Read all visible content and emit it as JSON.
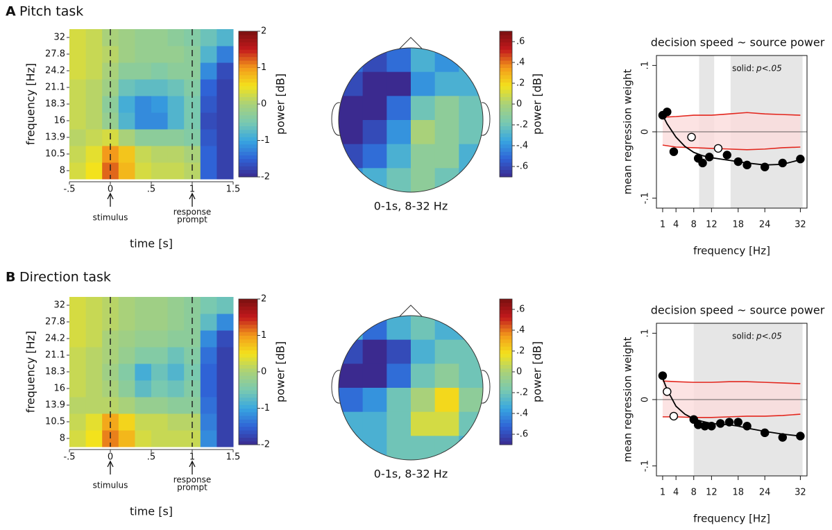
{
  "panels": [
    {
      "label": "A",
      "title": "Pitch task"
    },
    {
      "label": "B",
      "title": "Direction task"
    }
  ],
  "chart_data": [
    {
      "type": "heatmap",
      "xlabel": "time [s]",
      "ylabel": "frequency [Hz]",
      "xlim": [
        -0.5,
        1.5
      ],
      "xticks": [
        {
          "value": -0.5,
          "label": "-.5"
        },
        0,
        {
          "value": 0.5,
          "label": ".5"
        },
        1,
        1.5
      ],
      "frequencies": [
        8,
        10.5,
        13.9,
        16,
        18.3,
        21.1,
        24.2,
        27.8,
        32
      ],
      "x": [
        -0.4,
        -0.2,
        0,
        0.2,
        0.4,
        0.6,
        0.8,
        1.0,
        1.2,
        1.4
      ],
      "values": [
        [
          0.3,
          0.5,
          1.2,
          0.8,
          0.3,
          0.2,
          0.2,
          0.1,
          -1.5,
          -1.8
        ],
        [
          0.2,
          0.4,
          1.0,
          0.7,
          0.2,
          0.1,
          0.1,
          0,
          -1.5,
          -1.8
        ],
        [
          0.1,
          0.2,
          0.3,
          0,
          -0.3,
          -0.3,
          -0.3,
          -0.4,
          -1.6,
          -1.8
        ],
        [
          0.2,
          0.1,
          -0.2,
          -0.8,
          -1.2,
          -1.2,
          -0.8,
          -0.5,
          -1.7,
          -1.8
        ],
        [
          0.2,
          0.1,
          -0.3,
          -0.9,
          -1.2,
          -1.1,
          -0.8,
          -0.5,
          -1.6,
          -1.8
        ],
        [
          0.2,
          0.1,
          -0.1,
          -0.6,
          -0.7,
          -0.7,
          -0.6,
          -0.4,
          -1.5,
          -1.8
        ],
        [
          0.3,
          0.2,
          0,
          -0.3,
          -0.3,
          -0.4,
          -0.3,
          -0.3,
          -1.2,
          -1.7
        ],
        [
          0.3,
          0.2,
          0.1,
          -0.1,
          -0.2,
          -0.2,
          -0.2,
          -0.3,
          -0.8,
          -1.3
        ],
        [
          0.3,
          0.2,
          0,
          -0.1,
          -0.2,
          -0.2,
          -0.3,
          -0.4,
          -0.6,
          -0.8
        ]
      ],
      "vlines": [
        0,
        1
      ],
      "annotations": [
        {
          "x": 0,
          "text": [
            "stimulus"
          ]
        },
        {
          "x": 1,
          "text": [
            "response",
            "prompt"
          ]
        }
      ],
      "colorbar": {
        "label": "power [dB]",
        "clim": [
          -2,
          2
        ],
        "ticks": [
          -2,
          -1,
          0,
          1,
          2
        ]
      },
      "colormap": [
        "#3b2a8f",
        "#2f63d6",
        "#38a6e0",
        "#79c9b0",
        "#a9d17a",
        "#f3e21c",
        "#f39a1b",
        "#c3191c",
        "#7a1010"
      ]
    },
    {
      "type": "topomap",
      "subtitle": "0-1s, 8-32 Hz",
      "values": [
        [
          -0.5,
          -0.6,
          -0.5,
          -0.3,
          -0.4,
          -0.3
        ],
        [
          -0.6,
          -0.7,
          -0.7,
          -0.4,
          -0.3,
          -0.3
        ],
        [
          -0.7,
          -0.7,
          -0.5,
          -0.2,
          -0.1,
          -0.2
        ],
        [
          -0.7,
          -0.6,
          -0.4,
          0.0,
          -0.1,
          -0.2
        ],
        [
          -0.6,
          -0.5,
          -0.3,
          -0.1,
          -0.1,
          -0.3
        ],
        [
          -0.4,
          -0.3,
          -0.2,
          -0.1,
          -0.2,
          -0.3
        ]
      ],
      "colorbar": {
        "label": "power [dB]",
        "clim": [
          -0.7,
          0.7
        ],
        "ticks": [
          {
            "value": -0.6,
            "label": "-.6"
          },
          {
            "value": -0.4,
            "label": "-.4"
          },
          {
            "value": -0.2,
            "label": "-.2"
          },
          0,
          {
            "value": 0.2,
            "label": ".2"
          },
          {
            "value": 0.4,
            "label": ".4"
          },
          {
            "value": 0.6,
            "label": ".6"
          }
        ]
      },
      "colormap": [
        "#3b2a8f",
        "#2f63d6",
        "#38a6e0",
        "#79c9b0",
        "#a9d17a",
        "#f3e21c",
        "#f39a1b",
        "#c3191c",
        "#7a1010"
      ]
    },
    {
      "type": "scatter",
      "title": "decision speed ~ source power",
      "xlabel": "frequency [Hz]",
      "ylabel": "mean regression weight",
      "annotation": [
        "solid:",
        "p<.05"
      ],
      "xlim": [
        -0.4,
        33.5
      ],
      "ylim": [
        -0.115,
        0.115
      ],
      "xticks": [
        1,
        4,
        8,
        12,
        18,
        24,
        32
      ],
      "yticks": [
        {
          "value": -0.1,
          "label": "-.1"
        },
        0,
        {
          "value": 0.1,
          "label": ".1"
        }
      ],
      "shaded": [
        [
          9.2,
          12.6
        ],
        [
          16.3,
          32.5
        ]
      ],
      "hline": 0,
      "x": [
        1,
        2,
        3.5,
        7.5,
        9,
        10,
        11.5,
        13.5,
        15.5,
        18,
        20,
        24,
        28,
        32
      ],
      "values": [
        0.025,
        0.03,
        -0.03,
        -0.008,
        -0.04,
        -0.047,
        -0.038,
        -0.025,
        -0.035,
        -0.045,
        -0.05,
        -0.053,
        -0.047,
        -0.041
      ],
      "significant": [
        true,
        true,
        true,
        false,
        true,
        true,
        true,
        false,
        true,
        true,
        true,
        true,
        true,
        true
      ],
      "fit": {
        "x": [
          1,
          2,
          4,
          6,
          8,
          10,
          12,
          14,
          16,
          18,
          20,
          24,
          28,
          32
        ],
        "values": [
          0.025,
          0.012,
          -0.008,
          -0.022,
          -0.031,
          -0.036,
          -0.039,
          -0.041,
          -0.043,
          -0.045,
          -0.047,
          -0.05,
          -0.049,
          -0.042
        ]
      },
      "null_band": {
        "x": [
          1,
          4,
          8,
          12,
          16,
          20,
          24,
          28,
          32
        ],
        "upper": [
          0.022,
          0.023,
          0.025,
          0.025,
          0.027,
          0.029,
          0.027,
          0.026,
          0.025
        ],
        "lower": [
          -0.02,
          -0.023,
          -0.024,
          -0.025,
          -0.026,
          -0.027,
          -0.026,
          -0.024,
          -0.023
        ]
      },
      "colors": {
        "points": "#000000",
        "band_line": "#e3261d",
        "band_fill": "#fbdcdc",
        "shade": "#e6e6e6"
      }
    },
    {
      "type": "heatmap",
      "xlabel": "time [s]",
      "ylabel": "frequency [Hz]",
      "xlim": [
        -0.5,
        1.5
      ],
      "xticks": [
        {
          "value": -0.5,
          "label": "-.5"
        },
        0,
        {
          "value": 0.5,
          "label": ".5"
        },
        1,
        1.5
      ],
      "frequencies": [
        8,
        10.5,
        13.9,
        16,
        18.3,
        21.1,
        24.2,
        27.8,
        32
      ],
      "x": [
        -0.4,
        -0.2,
        0,
        0.2,
        0.4,
        0.6,
        0.8,
        1.0,
        1.2,
        1.4
      ],
      "values": [
        [
          0.3,
          0.5,
          1.1,
          0.8,
          0.3,
          0.2,
          0.2,
          0.2,
          -1.2,
          -1.8
        ],
        [
          0.2,
          0.4,
          0.9,
          0.6,
          0.2,
          0.2,
          0.1,
          0.1,
          -1.3,
          -1.8
        ],
        [
          0.1,
          0.1,
          0.1,
          0,
          -0.2,
          -0.2,
          -0.3,
          -0.3,
          -1.4,
          -1.8
        ],
        [
          0.2,
          0.1,
          0,
          -0.3,
          -0.7,
          -0.5,
          -0.6,
          -0.4,
          -1.5,
          -1.8
        ],
        [
          0.2,
          0.1,
          -0.1,
          -0.4,
          -0.9,
          -0.6,
          -0.8,
          -0.5,
          -1.5,
          -1.8
        ],
        [
          0.2,
          0.1,
          0,
          -0.2,
          -0.4,
          -0.4,
          -0.6,
          -0.4,
          -1.4,
          -1.8
        ],
        [
          0.3,
          0.2,
          0,
          -0.1,
          -0.2,
          -0.2,
          -0.3,
          -0.3,
          -1.2,
          -1.7
        ],
        [
          0.3,
          0.2,
          0.1,
          0,
          -0.1,
          -0.1,
          -0.2,
          -0.3,
          -0.7,
          -1.2
        ],
        [
          0.3,
          0.2,
          0.1,
          0,
          -0.1,
          -0.1,
          -0.2,
          -0.3,
          -0.5,
          -0.6
        ]
      ],
      "vlines": [
        0,
        1
      ],
      "annotations": [
        {
          "x": 0,
          "text": [
            "stimulus"
          ]
        },
        {
          "x": 1,
          "text": [
            "response",
            "prompt"
          ]
        }
      ],
      "colorbar": {
        "label": "power [dB]",
        "clim": [
          -2,
          2
        ],
        "ticks": [
          -2,
          -1,
          0,
          1,
          2
        ]
      },
      "colormap": [
        "#3b2a8f",
        "#2f63d6",
        "#38a6e0",
        "#79c9b0",
        "#a9d17a",
        "#f3e21c",
        "#f39a1b",
        "#c3191c",
        "#7a1010"
      ]
    },
    {
      "type": "topomap",
      "subtitle": "0-1s, 8-32 Hz",
      "values": [
        [
          -0.3,
          -0.5,
          -0.3,
          -0.2,
          -0.3,
          -0.3
        ],
        [
          -0.6,
          -0.7,
          -0.6,
          -0.3,
          -0.2,
          -0.2
        ],
        [
          -0.7,
          -0.7,
          -0.5,
          -0.2,
          -0.1,
          -0.2
        ],
        [
          -0.5,
          -0.4,
          -0.2,
          0.0,
          0.2,
          -0.1
        ],
        [
          -0.3,
          -0.3,
          -0.2,
          0.1,
          0.1,
          -0.2
        ],
        [
          -0.3,
          -0.3,
          -0.2,
          -0.2,
          -0.2,
          -0.3
        ]
      ],
      "colorbar": {
        "label": "power [dB]",
        "clim": [
          -0.7,
          0.7
        ],
        "ticks": [
          {
            "value": -0.6,
            "label": "-.6"
          },
          {
            "value": -0.4,
            "label": "-.4"
          },
          {
            "value": -0.2,
            "label": "-.2"
          },
          0,
          {
            "value": 0.2,
            "label": ".2"
          },
          {
            "value": 0.4,
            "label": ".4"
          },
          {
            "value": 0.6,
            "label": ".6"
          }
        ]
      },
      "colormap": [
        "#3b2a8f",
        "#2f63d6",
        "#38a6e0",
        "#79c9b0",
        "#a9d17a",
        "#f3e21c",
        "#f39a1b",
        "#c3191c",
        "#7a1010"
      ]
    },
    {
      "type": "scatter",
      "title": "decision speed ~ source power",
      "xlabel": "frequency [Hz]",
      "ylabel": "mean regression weight",
      "annotation": [
        "solid:",
        "p<.05"
      ],
      "xlim": [
        -0.4,
        33.5
      ],
      "ylim": [
        -0.115,
        0.115
      ],
      "xticks": [
        1,
        4,
        8,
        12,
        18,
        24,
        32
      ],
      "yticks": [
        {
          "value": -0.1,
          "label": "-.1"
        },
        0,
        {
          "value": 0.1,
          "label": ".1"
        }
      ],
      "shaded": [
        [
          8,
          32.5
        ]
      ],
      "hline": 0,
      "x": [
        1,
        2,
        3.5,
        8,
        9,
        10.5,
        12,
        14,
        16,
        18,
        20,
        24,
        28,
        32
      ],
      "values": [
        0.036,
        0.012,
        -0.025,
        -0.03,
        -0.038,
        -0.04,
        -0.04,
        -0.036,
        -0.034,
        -0.034,
        -0.04,
        -0.05,
        -0.057,
        -0.055
      ],
      "significant": [
        true,
        false,
        false,
        true,
        true,
        true,
        true,
        true,
        true,
        true,
        true,
        true,
        true,
        true
      ],
      "fit": {
        "x": [
          1,
          2,
          4,
          6,
          8,
          10,
          12,
          14,
          16,
          18,
          20,
          24,
          28,
          32
        ],
        "values": [
          0.032,
          0.015,
          -0.01,
          -0.022,
          -0.029,
          -0.033,
          -0.036,
          -0.037,
          -0.038,
          -0.04,
          -0.043,
          -0.048,
          -0.052,
          -0.055
        ]
      },
      "null_band": {
        "x": [
          1,
          4,
          8,
          12,
          16,
          20,
          24,
          28,
          32
        ],
        "upper": [
          0.028,
          0.027,
          0.026,
          0.026,
          0.027,
          0.027,
          0.026,
          0.025,
          0.024
        ],
        "lower": [
          -0.026,
          -0.026,
          -0.027,
          -0.027,
          -0.026,
          -0.025,
          -0.025,
          -0.024,
          -0.022
        ]
      },
      "colors": {
        "points": "#000000",
        "band_line": "#e3261d",
        "band_fill": "#fbdcdc",
        "shade": "#e6e6e6"
      }
    }
  ]
}
